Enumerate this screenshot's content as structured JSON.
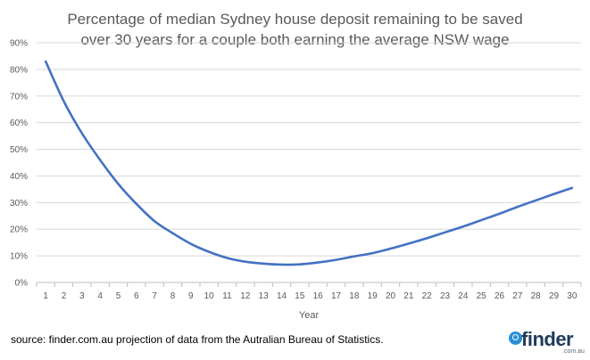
{
  "chart_data": {
    "type": "line",
    "title_lines": [
      "Percentage of median Sydney house deposit remaining to  be saved",
      "over 30 years for a couple both earning the average NSW wage"
    ],
    "xlabel": "Year",
    "ylabel": "",
    "ylim": [
      0,
      90
    ],
    "y_ticks": [
      0,
      10,
      20,
      30,
      40,
      50,
      60,
      70,
      80,
      90
    ],
    "y_tick_labels": [
      "0%",
      "10%",
      "20%",
      "30%",
      "40%",
      "50%",
      "60%",
      "70%",
      "80%",
      "90%"
    ],
    "categories": [
      "1",
      "2",
      "3",
      "4",
      "5",
      "6",
      "7",
      "8",
      "9",
      "10",
      "11",
      "12",
      "13",
      "14",
      "15",
      "16",
      "17",
      "18",
      "19",
      "20",
      "21",
      "22",
      "23",
      "24",
      "25",
      "26",
      "27",
      "28",
      "29",
      "30"
    ],
    "grid": true,
    "legend": "none",
    "series": [
      {
        "color": "#4472c4",
        "values": [
          83,
          68,
          56,
          46,
          37,
          29.5,
          23,
          18.5,
          14.5,
          11.5,
          9.2,
          7.8,
          7.1,
          6.7,
          6.8,
          7.5,
          8.5,
          9.8,
          11,
          12.7,
          14.6,
          16.6,
          18.8,
          21,
          23.4,
          25.8,
          28.4,
          30.8,
          33.2,
          35.5
        ]
      }
    ]
  },
  "footer": {
    "source": "source: finder.com.au projection of data from the Autralian Bureau of Statistics."
  },
  "logo": {
    "word": "finder",
    "sub": ".com.au",
    "icon": "search-magnifier-icon",
    "color": "#1f3b5a",
    "accent": "#2a8fd6"
  }
}
